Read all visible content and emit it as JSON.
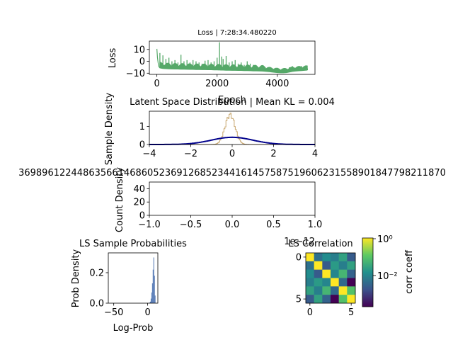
{
  "chart_data": [
    {
      "id": "loss",
      "type": "line",
      "title": "Loss | 7:28:34.480220",
      "xlabel": "Epoch",
      "ylabel": "Loss",
      "xlim": [
        -250,
        5250
      ],
      "ylim": [
        -11,
        17
      ],
      "xticks": [
        0,
        2000,
        4000
      ],
      "yticks": [
        -10,
        0,
        10
      ],
      "xtick_labels": [
        "0",
        "2000",
        "4000"
      ],
      "ytick_labels": [
        "−10",
        "0",
        "10"
      ],
      "color": "#55a868",
      "series": [
        {
          "x": [
            0,
            20,
            40,
            60,
            80,
            100,
            150,
            200,
            300,
            400,
            500,
            600,
            700,
            800,
            900,
            1000,
            1100,
            1200,
            1300,
            1400,
            1500,
            1600,
            1700,
            1800,
            1900,
            2000,
            2050,
            2080,
            2100,
            2120,
            2200,
            2300,
            2400,
            2500,
            2600,
            2700,
            2800,
            2900,
            3000,
            3100,
            3200,
            3300,
            3400,
            3500,
            3600,
            3700,
            3800,
            3900,
            4000,
            4100,
            4200,
            4300,
            4400,
            4500,
            4600,
            4700,
            4800,
            4900,
            5000
          ],
          "y": [
            10.5,
            3,
            -1,
            -4,
            -5,
            -5.5,
            -5.8,
            -6,
            -6.2,
            -6.3,
            -6.4,
            -6.5,
            -6.5,
            -6.6,
            -6.6,
            -6.7,
            -6.8,
            -6.8,
            -6.9,
            -6.9,
            -7,
            -7,
            -7.1,
            -7.1,
            -7.2,
            -7.2,
            -7.3,
            -7.3,
            -7.3,
            -7.4,
            -7.4,
            -7.5,
            -7.5,
            -7.6,
            -7.6,
            -7.7,
            -7.7,
            -7.8,
            -7.8,
            -7.9,
            -8,
            -8,
            -8.1,
            -8.2,
            -8.4,
            -8.6,
            -8.9,
            -9.2,
            -9.5,
            -9.7,
            -9.7,
            -9.5,
            -9,
            -8.5,
            -8.2,
            -8,
            -7.8,
            -7.6,
            -7.4
          ],
          "spikes_x": [
            100,
            200,
            300,
            400,
            500,
            600,
            700,
            800,
            900,
            1000,
            1100,
            1200,
            1300,
            1400,
            1500,
            1600,
            1700,
            1800,
            1900,
            2000,
            2080,
            2150,
            2200,
            2300,
            2400,
            2500,
            2600,
            2700,
            2800,
            2900,
            3000,
            3100,
            3200,
            3300,
            3400,
            3500,
            3600,
            3700,
            4000,
            4200,
            4400,
            4500,
            4600,
            4700,
            4800,
            4900,
            5000
          ],
          "spikes_y": [
            7,
            5,
            2,
            3,
            0,
            1,
            -1,
            5.5,
            0,
            1,
            -1,
            1,
            0,
            -1,
            -2,
            0.5,
            1,
            -1,
            0,
            3,
            16,
            4,
            2,
            4.5,
            -1,
            0,
            1,
            -2,
            -1,
            -3,
            0,
            -2,
            -3,
            -4,
            -5,
            -4,
            -5,
            -6,
            -8,
            -7,
            -5,
            -4,
            -6,
            -5,
            -4,
            -5,
            -6
          ]
        }
      ]
    },
    {
      "id": "latent",
      "type": "line",
      "title": "Latent Space Distribution | Mean KL = 0.004",
      "xlabel": "",
      "ylabel": "Sample Density",
      "xlim": [
        -4,
        4
      ],
      "ylim": [
        0,
        1.85
      ],
      "xticks": [
        -4,
        -2,
        0,
        2,
        4
      ],
      "yticks": [
        0,
        1
      ],
      "xtick_labels": [
        "−4",
        "−2",
        "0",
        "2",
        "4"
      ],
      "ytick_labels": [
        "0",
        "1"
      ],
      "series": [
        {
          "kind": "gaussian",
          "mean": 0,
          "std": 1,
          "peak": 0.4,
          "color": "#00008b"
        },
        {
          "kind": "hist_step",
          "mean": -0.1,
          "std": 0.24,
          "peak": 1.65,
          "color": "#c9a870"
        }
      ]
    },
    {
      "id": "empty",
      "type": "bar",
      "title": "3698961224486356614686052369126852344161457587519606231558901847798211870",
      "xlabel": "",
      "ylabel": "Count Density",
      "xlim": [
        -1,
        1
      ],
      "ylim": [
        0,
        50
      ],
      "xticks": [
        -1,
        -0.5,
        0,
        0.5,
        1
      ],
      "yticks": [
        0,
        20,
        40
      ],
      "xtick_labels": [
        "−1.0",
        "−0.5",
        "0.0",
        "0.5",
        "1.0"
      ],
      "ytick_labels": [
        "0",
        "20",
        "40"
      ],
      "offset_label": "1e−12",
      "values": []
    },
    {
      "id": "probs",
      "type": "bar",
      "title": "LS Sample Probabilities",
      "xlabel": "Log-Prob",
      "ylabel": "Prob Density",
      "xlim": [
        -58,
        15
      ],
      "ylim": [
        0,
        0.33
      ],
      "xticks": [
        -50,
        0
      ],
      "yticks": [
        0.0,
        0.2
      ],
      "xtick_labels": [
        "−50",
        "0"
      ],
      "ytick_labels": [
        "0.0",
        "0.2"
      ],
      "color": "#4c72b0",
      "bins": [
        3,
        4,
        5,
        6,
        7,
        8,
        9,
        10,
        11
      ],
      "values": [
        0.004,
        0.01,
        0.03,
        0.07,
        0.13,
        0.22,
        0.3,
        0.18,
        0.05
      ]
    },
    {
      "id": "corr",
      "type": "heatmap",
      "title": "LS Correlation",
      "xlabel": "",
      "ylabel": "",
      "xticks": [
        0,
        5
      ],
      "yticks": [
        0,
        5
      ],
      "xtick_labels": [
        "0",
        "5"
      ],
      "ytick_labels": [
        "0",
        "5"
      ],
      "colorbar_label": "corr coeff",
      "colorbar_ticks": [
        "10⁰",
        "10⁻²"
      ],
      "colorbar_scale": "log",
      "matrix": [
        [
          0,
          -2.2,
          -1.8,
          -2.0,
          -1.5,
          -2.5
        ],
        [
          -2.2,
          0,
          -2.5,
          -1.6,
          -2.0,
          -1.5
        ],
        [
          -1.8,
          -2.5,
          0,
          -1.9,
          -1.2,
          -2.4
        ],
        [
          -2.0,
          -1.6,
          -1.9,
          0,
          -2.3,
          -3.5
        ],
        [
          -1.5,
          -2.0,
          -1.2,
          -2.3,
          0,
          -1.0
        ],
        [
          -2.5,
          -1.5,
          -2.4,
          -3.5,
          -1.0,
          0
        ]
      ]
    }
  ]
}
